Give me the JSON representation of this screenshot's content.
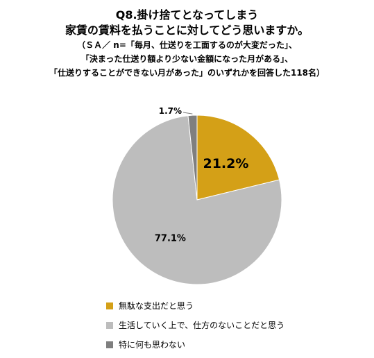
{
  "title": {
    "line1": "Q8.掛け捨てとなってしまう",
    "line2": "家賃の賃料を払うことに対してどう思いますか。",
    "line3": "（ＳＡ／ n=「毎月、仕送りを工面するのが大変だった」、",
    "line4": "「決まった仕送り額より少ない金額になった月がある」、",
    "line5": "「仕送りすることができない月があった」のいずれかを回答した118名）"
  },
  "chart_data": {
    "type": "pie",
    "labels": [
      "無駄な支出だと思う",
      "生活していく上で、仕方のないことだと思う",
      "特に何も思わない"
    ],
    "values": [
      21.2,
      77.1,
      1.7
    ],
    "value_labels": [
      "21.2%",
      "77.1%",
      "1.7%"
    ],
    "colors": [
      "#D4A017",
      "#BDBDBD",
      "#7F7F7F"
    ],
    "start_angle": "12 o'clock",
    "direction": "clockwise",
    "legend_position": "bottom"
  }
}
